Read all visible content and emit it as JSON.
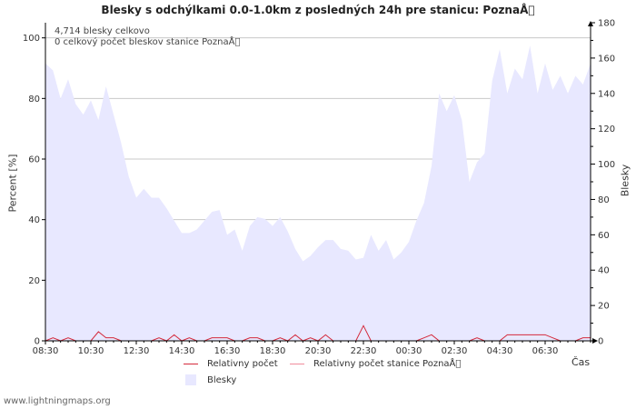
{
  "title": "Blesky s odchýlkami 0.0-1.0km z posledných 24h pre stanicu: PoznaÅ\u0000",
  "annotations": {
    "line1": "4,714 blesky celkovo",
    "line2": "0 celkový počet bleskov stanice PoznaÅ\u0000"
  },
  "footer": "www.lightningmaps.org",
  "colors": {
    "area": "#e8e8ff",
    "relative": "#d42a3c",
    "relative_station": "#f08c9c",
    "grid": "#c8c8c8",
    "axis": "#000000"
  },
  "chart_data": {
    "type": "area",
    "title": "Blesky s odchýlkami 0.0-1.0km z posledných 24h pre stanicu: PoznaÅ\u0000",
    "xlabel": "Čas",
    "ylabel_left": "Percent   [%]",
    "ylabel_right": "Blesky",
    "ylim_left": [
      0,
      105
    ],
    "ylim_right": [
      0,
      180
    ],
    "yticks_left": [
      "0",
      "20",
      "40",
      "60",
      "80",
      "100"
    ],
    "yticks_right": [
      "0",
      "20",
      "40",
      "60",
      "80",
      "100",
      "120",
      "140",
      "160",
      "180"
    ],
    "xlim": [
      0,
      1440
    ],
    "xticks": [
      {
        "t": 0,
        "label": "08:30"
      },
      {
        "t": 120,
        "label": "10:30"
      },
      {
        "t": 240,
        "label": "12:30"
      },
      {
        "t": 360,
        "label": "14:30"
      },
      {
        "t": 480,
        "label": "16:30"
      },
      {
        "t": 600,
        "label": "18:30"
      },
      {
        "t": 720,
        "label": "20:30"
      },
      {
        "t": 840,
        "label": "22:30"
      },
      {
        "t": 960,
        "label": "00:30"
      },
      {
        "t": 1080,
        "label": "02:30"
      },
      {
        "t": 1200,
        "label": "04:30"
      },
      {
        "t": 1320,
        "label": "06:30"
      }
    ],
    "legend": [
      {
        "key": "relative",
        "label": "Relativny počet",
        "kind": "line"
      },
      {
        "key": "relative_station",
        "label": "Relativny počet stanice PoznaÅ\u0000",
        "kind": "line"
      },
      {
        "key": "area",
        "label": "Blesky",
        "kind": "area"
      }
    ],
    "series": [
      {
        "name": "Blesky",
        "axis": "right",
        "x": [
          0,
          20,
          40,
          60,
          80,
          100,
          120,
          140,
          160,
          180,
          200,
          220,
          240,
          260,
          280,
          300,
          320,
          340,
          360,
          380,
          400,
          420,
          440,
          460,
          480,
          500,
          520,
          540,
          560,
          580,
          600,
          620,
          640,
          660,
          680,
          700,
          720,
          740,
          760,
          780,
          800,
          820,
          840,
          860,
          880,
          900,
          920,
          940,
          960,
          980,
          1000,
          1020,
          1040,
          1060,
          1080,
          1100,
          1120,
          1140,
          1160,
          1180,
          1200,
          1220,
          1240,
          1260,
          1280,
          1300,
          1320,
          1340,
          1360,
          1380,
          1400,
          1420,
          1440
        ],
        "values": [
          157,
          153,
          137,
          148,
          134,
          128,
          136,
          125,
          144,
          128,
          112,
          93,
          81,
          86,
          81,
          81,
          75,
          68,
          61,
          61,
          63,
          68,
          73,
          74,
          60,
          63,
          51,
          65,
          70,
          69,
          65,
          70,
          62,
          52,
          45,
          48,
          53,
          57,
          57,
          52,
          51,
          46,
          47,
          60,
          51,
          57,
          46,
          50,
          56,
          68,
          78,
          99,
          140,
          130,
          139,
          125,
          90,
          101,
          106,
          147,
          165,
          140,
          154,
          148,
          167,
          140,
          157,
          142,
          150,
          140,
          150,
          145,
          157
        ]
      },
      {
        "name": "Relativny počet",
        "axis": "left",
        "x": [
          0,
          20,
          40,
          60,
          80,
          100,
          120,
          140,
          160,
          180,
          200,
          220,
          240,
          260,
          280,
          300,
          320,
          340,
          360,
          380,
          400,
          420,
          440,
          460,
          480,
          500,
          520,
          540,
          560,
          580,
          600,
          620,
          640,
          660,
          680,
          700,
          720,
          740,
          760,
          780,
          800,
          820,
          840,
          860,
          880,
          900,
          920,
          940,
          960,
          980,
          1000,
          1020,
          1040,
          1060,
          1080,
          1100,
          1120,
          1140,
          1160,
          1180,
          1200,
          1220,
          1240,
          1260,
          1280,
          1300,
          1320,
          1340,
          1360,
          1380,
          1400,
          1420,
          1440
        ],
        "values": [
          0,
          1,
          0,
          1,
          0,
          0,
          0,
          3,
          1,
          1,
          0,
          0,
          0,
          0,
          0,
          1,
          0,
          2,
          0,
          1,
          0,
          0,
          1,
          1,
          1,
          0,
          0,
          1,
          1,
          0,
          0,
          1,
          0,
          2,
          0,
          1,
          0,
          2,
          0,
          0,
          0,
          0,
          5,
          0,
          0,
          0,
          0,
          0,
          0,
          0,
          1,
          2,
          0,
          0,
          0,
          0,
          0,
          1,
          0,
          0,
          0,
          2,
          2,
          2,
          2,
          2,
          2,
          1,
          0,
          0,
          0,
          1,
          1
        ]
      },
      {
        "name": "Relativny počet stanice PoznaÅ\u0000",
        "axis": "left",
        "x": [
          0,
          1440
        ],
        "values": [
          0,
          0
        ]
      }
    ]
  }
}
